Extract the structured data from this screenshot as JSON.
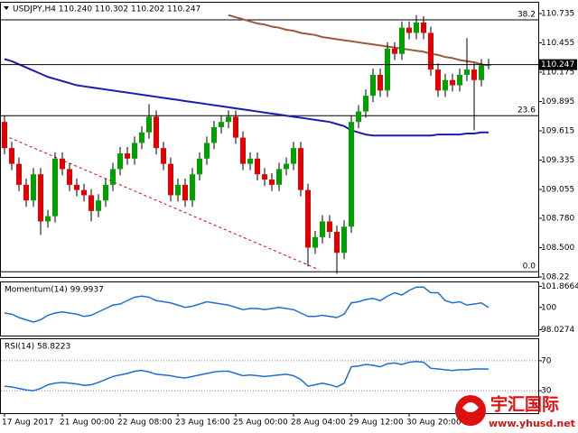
{
  "chart_data": [
    {
      "type": "candlestick",
      "title": "USDJPY,H4  110.240 110.302 110.202 110.247",
      "categories": [
        "17 Aug 2017",
        null,
        null,
        null,
        null,
        null,
        null,
        null,
        "21 Aug 00:00",
        null,
        null,
        null,
        null,
        null,
        null,
        null,
        "22 Aug 08:00",
        null,
        null,
        null,
        null,
        null,
        null,
        null,
        "23 Aug 16:00",
        null,
        null,
        null,
        null,
        null,
        null,
        null,
        "25 Aug 00:00",
        null,
        null,
        null,
        null,
        null,
        null,
        null,
        "28 Aug 04:00",
        null,
        null,
        null,
        null,
        null,
        null,
        null,
        "29 Aug 12:00",
        null,
        null,
        null,
        null,
        null,
        null,
        null,
        "30 Aug 20:00",
        null,
        null,
        null,
        null,
        null,
        null,
        null,
        null,
        null,
        null,
        null
      ],
      "open": [
        109.7,
        109.45,
        109.3,
        109.1,
        108.95,
        109.2,
        108.75,
        108.8,
        109.35,
        109.25,
        109.1,
        109.05,
        109.0,
        108.85,
        108.95,
        109.1,
        109.25,
        109.4,
        109.35,
        109.5,
        109.6,
        109.75,
        109.45,
        109.3,
        109.0,
        109.1,
        108.95,
        109.2,
        109.35,
        109.5,
        109.65,
        109.7,
        109.75,
        109.55,
        109.3,
        109.35,
        109.2,
        109.15,
        109.1,
        109.25,
        109.3,
        109.45,
        109.05,
        108.5,
        108.6,
        108.75,
        108.65,
        108.45,
        108.7,
        109.7,
        109.8,
        109.95,
        110.15,
        110.0,
        110.4,
        110.35,
        110.6,
        110.55,
        110.65,
        110.55,
        110.2,
        110.0,
        110.1,
        110.05,
        110.15,
        110.2,
        110.1,
        110.24
      ],
      "high": [
        109.76,
        109.51,
        109.36,
        109.16,
        109.26,
        109.26,
        108.86,
        109.41,
        109.41,
        109.31,
        109.16,
        109.11,
        109.06,
        109.01,
        109.16,
        109.31,
        109.46,
        109.46,
        109.56,
        109.66,
        109.87,
        109.81,
        109.51,
        109.36,
        109.16,
        109.16,
        109.26,
        109.41,
        109.56,
        109.71,
        109.76,
        109.81,
        109.81,
        109.61,
        109.41,
        109.41,
        109.26,
        109.21,
        109.31,
        109.36,
        109.51,
        109.51,
        109.11,
        108.66,
        108.81,
        108.81,
        108.71,
        108.76,
        109.76,
        109.86,
        110.01,
        110.21,
        110.21,
        110.46,
        110.46,
        110.66,
        110.66,
        110.72,
        110.71,
        110.61,
        110.26,
        110.16,
        110.16,
        110.21,
        110.5,
        110.26,
        110.3,
        110.302
      ],
      "low": [
        109.39,
        109.24,
        109.04,
        108.89,
        108.89,
        108.62,
        108.69,
        108.74,
        109.19,
        109.04,
        108.99,
        108.94,
        108.75,
        108.79,
        108.89,
        109.04,
        109.19,
        109.29,
        109.29,
        109.44,
        109.54,
        109.39,
        109.24,
        108.94,
        108.94,
        108.89,
        108.89,
        109.14,
        109.29,
        109.44,
        109.59,
        109.64,
        109.49,
        109.24,
        109.24,
        109.14,
        109.09,
        109.04,
        109.04,
        109.19,
        109.24,
        108.99,
        108.32,
        108.44,
        108.54,
        108.59,
        108.25,
        108.39,
        108.64,
        109.64,
        109.74,
        109.89,
        109.94,
        109.94,
        110.29,
        110.29,
        110.49,
        110.49,
        110.49,
        110.14,
        109.94,
        109.94,
        109.99,
        109.99,
        110.09,
        109.62,
        110.04,
        110.202
      ],
      "close": [
        109.45,
        109.3,
        109.1,
        108.95,
        109.2,
        108.75,
        108.8,
        109.35,
        109.25,
        109.1,
        109.05,
        109.0,
        108.85,
        108.95,
        109.1,
        109.25,
        109.4,
        109.35,
        109.5,
        109.6,
        109.75,
        109.45,
        109.3,
        109.0,
        109.1,
        108.95,
        109.2,
        109.35,
        109.5,
        109.65,
        109.7,
        109.75,
        109.55,
        109.3,
        109.35,
        109.2,
        109.15,
        109.1,
        109.25,
        109.3,
        109.45,
        109.05,
        108.5,
        108.6,
        108.75,
        108.65,
        108.45,
        108.7,
        109.7,
        109.8,
        109.95,
        110.15,
        110.0,
        110.4,
        110.35,
        110.6,
        110.55,
        110.65,
        110.55,
        110.2,
        110.0,
        110.1,
        110.05,
        110.15,
        110.2,
        110.1,
        110.24,
        110.247
      ],
      "up_color": "#00a000",
      "down_color": "#e00000",
      "lines": [
        {
          "color": "#1c1cb0",
          "values": [
            110.3,
            110.28,
            110.25,
            110.22,
            110.19,
            110.16,
            110.13,
            110.11,
            110.09,
            110.07,
            110.05,
            110.04,
            110.03,
            110.02,
            110.01,
            110.0,
            109.99,
            109.98,
            109.97,
            109.96,
            109.95,
            109.94,
            109.93,
            109.92,
            109.91,
            109.9,
            109.89,
            109.88,
            109.87,
            109.86,
            109.85,
            109.84,
            109.83,
            109.82,
            109.81,
            109.8,
            109.79,
            109.78,
            109.77,
            109.76,
            109.75,
            109.74,
            109.73,
            109.72,
            109.71,
            109.7,
            109.68,
            109.66,
            109.62,
            109.6,
            109.58,
            109.57,
            109.57,
            109.57,
            109.57,
            109.57,
            109.57,
            109.57,
            109.57,
            109.57,
            109.58,
            109.58,
            109.58,
            109.58,
            109.59,
            109.59,
            109.6,
            109.6
          ]
        },
        {
          "color": "#9a5a3a",
          "values": [
            null,
            null,
            null,
            null,
            null,
            null,
            null,
            null,
            null,
            null,
            null,
            null,
            null,
            null,
            null,
            null,
            null,
            null,
            null,
            null,
            null,
            null,
            null,
            null,
            null,
            null,
            null,
            null,
            null,
            null,
            null,
            110.72,
            110.7,
            110.68,
            110.66,
            110.64,
            110.63,
            110.61,
            110.6,
            110.58,
            110.57,
            110.55,
            110.54,
            110.53,
            110.51,
            110.5,
            110.49,
            110.48,
            110.47,
            110.46,
            110.45,
            110.44,
            110.43,
            110.42,
            110.41,
            110.4,
            110.39,
            110.38,
            110.37,
            110.35,
            110.34,
            110.32,
            110.31,
            110.29,
            110.28,
            110.27,
            110.25,
            110.24
          ]
        }
      ],
      "trendline": {
        "color": "#e00000",
        "x": [
          0,
          43.5
        ],
        "values": [
          109.57,
          108.29
        ]
      },
      "levels": [
        {
          "value": 110.675,
          "label": "38.2"
        },
        {
          "value": 109.76,
          "label": "23.6"
        },
        {
          "value": 108.27,
          "label": "0.0"
        }
      ],
      "last_price": 110.247,
      "ylim": [
        108.22,
        110.847
      ],
      "yticks": [
        110.735,
        110.455,
        110.175,
        109.895,
        109.615,
        109.335,
        109.055,
        {
          "value": 108.78,
          "label": "108.780"
        },
        {
          "value": 108.5,
          "label": "108.500"
        },
        108.22
      ],
      "grid": false
    },
    {
      "type": "line",
      "title": "Momentum(14) 99.9937",
      "color": "#1e6fd0",
      "values": [
        99.5,
        99.4,
        99.1,
        98.9,
        98.7,
        98.9,
        99.3,
        99.5,
        99.6,
        99.5,
        99.4,
        99.2,
        99.3,
        99.6,
        99.9,
        100.2,
        100.3,
        100.6,
        100.9,
        101.0,
        100.9,
        100.6,
        100.5,
        100.4,
        100.2,
        100.0,
        100.1,
        100.3,
        100.5,
        100.4,
        100.3,
        100.2,
        100.0,
        99.8,
        99.9,
        99.9,
        99.8,
        99.9,
        100.0,
        99.9,
        99.8,
        99.5,
        99.2,
        99.2,
        99.3,
        99.2,
        99.1,
        99.4,
        100.4,
        100.5,
        100.7,
        100.8,
        100.6,
        101.0,
        101.3,
        101.1,
        101.5,
        101.8,
        101.8,
        101.3,
        101.3,
        100.6,
        100.4,
        100.5,
        100.2,
        100.3,
        100.4,
        99.9937
      ],
      "ylim": [
        97.5,
        102.3
      ],
      "yticks": [
        101.8664,
        100,
        98.0274
      ],
      "grid": false
    },
    {
      "type": "line",
      "title": "RSI(14) 58.8223",
      "color": "#1e6fd0",
      "values": [
        36,
        35,
        33,
        31,
        30,
        33,
        38,
        40,
        41,
        40,
        39,
        37,
        38,
        41,
        45,
        49,
        51,
        53,
        56,
        57,
        55,
        52,
        51,
        50,
        48,
        47,
        49,
        51,
        53,
        55,
        56,
        56,
        53,
        50,
        51,
        50,
        49,
        50,
        51,
        52,
        50,
        45,
        36,
        38,
        40,
        38,
        35,
        40,
        62,
        63,
        65,
        64,
        62,
        66,
        67,
        65,
        68,
        69,
        68,
        60,
        59,
        58,
        57,
        58,
        58,
        59,
        59,
        58.8223
      ],
      "ylim": [
        0,
        100
      ],
      "yticks": [
        70,
        30
      ],
      "grid": true
    }
  ],
  "watermark": {
    "name": "宇汇国际",
    "url": "www.yhusd.net"
  }
}
